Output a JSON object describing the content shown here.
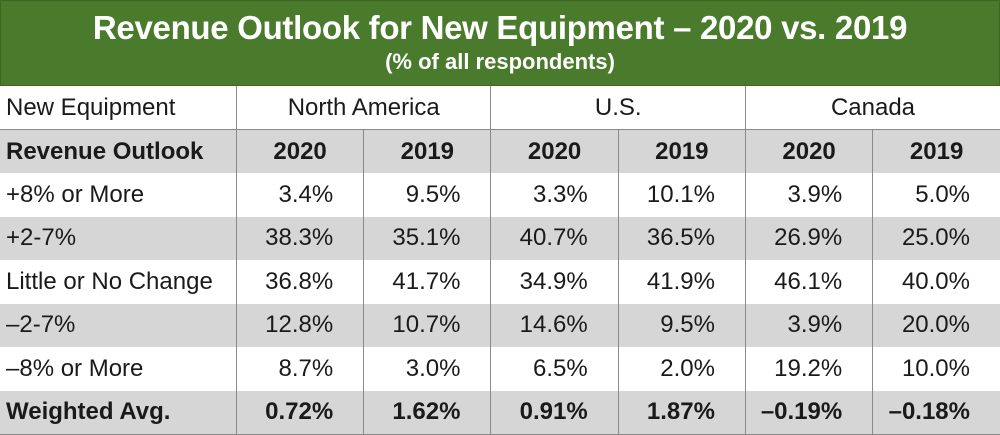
{
  "title": "Revenue Outlook for New Equipment – 2020 vs. 2019",
  "subtitle": "(% of all respondents)",
  "chart_data": {
    "type": "table",
    "region_header": {
      "label": "New Equipment",
      "regions": [
        "North America",
        "U.S.",
        "Canada"
      ]
    },
    "year_header": {
      "label": "Revenue Outlook",
      "years": [
        "2020",
        "2019",
        "2020",
        "2019",
        "2020",
        "2019"
      ]
    },
    "rows": [
      {
        "label": "+8% or More",
        "values": [
          "3.4%",
          "9.5%",
          "3.3%",
          "10.1%",
          "3.9%",
          "5.0%"
        ]
      },
      {
        "label": "+2-7%",
        "values": [
          "38.3%",
          "35.1%",
          "40.7%",
          "36.5%",
          "26.9%",
          "25.0%"
        ]
      },
      {
        "label": "Little or No Change",
        "values": [
          "36.8%",
          "41.7%",
          "34.9%",
          "41.9%",
          "46.1%",
          "40.0%"
        ]
      },
      {
        "label": "–2-7%",
        "values": [
          "12.8%",
          "10.7%",
          "14.6%",
          "9.5%",
          "3.9%",
          "20.0%"
        ]
      },
      {
        "label": "–8% or More",
        "values": [
          "8.7%",
          "3.0%",
          "6.5%",
          "2.0%",
          "19.2%",
          "10.0%"
        ]
      }
    ],
    "summary_row": {
      "label": "Weighted Avg.",
      "values": [
        "0.72%",
        "1.62%",
        "0.91%",
        "1.87%",
        "–0.19%",
        "–0.18%"
      ]
    }
  },
  "colors": {
    "header_bg": "#4a7a2c",
    "header_text": "#ffffff",
    "stripe": "#d6d6d6",
    "white": "#ffffff",
    "grid": "#8a8a8a"
  }
}
